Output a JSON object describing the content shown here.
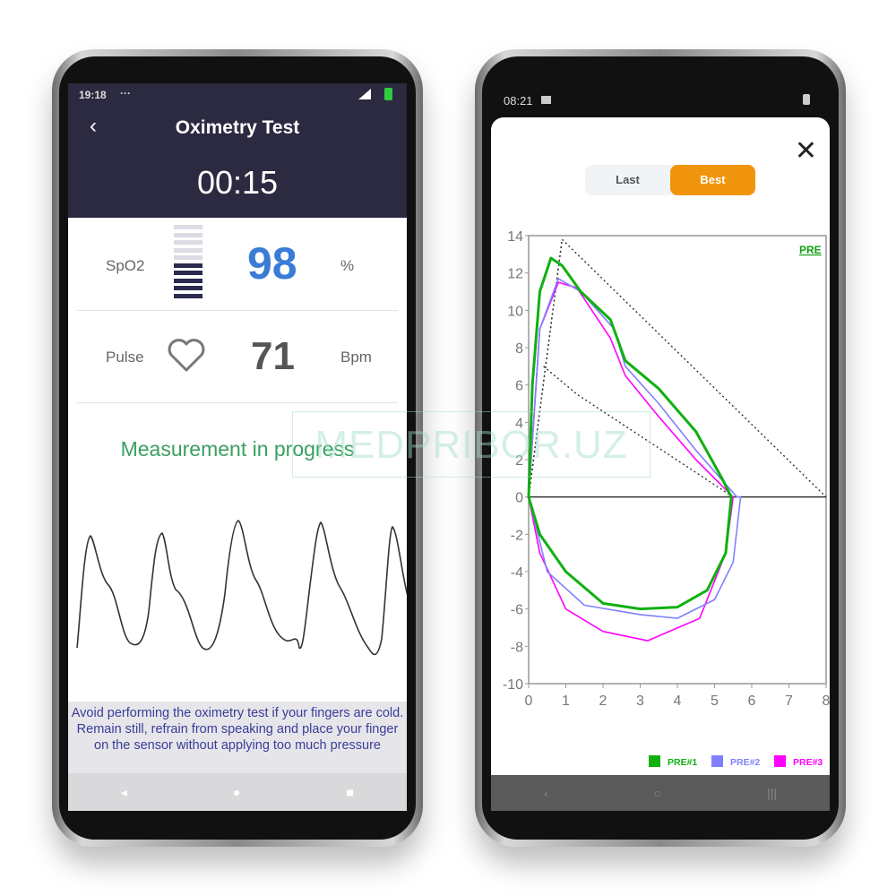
{
  "left_phone": {
    "status_time": "19:18",
    "status_dots": "···",
    "title": "Oximetry Test",
    "timer": "00:15",
    "spo2": {
      "label": "SpO2",
      "value": "98",
      "unit": "%",
      "level_bars_filled": 5,
      "level_bars_total": 10
    },
    "pulse": {
      "label": "Pulse",
      "value": "71",
      "unit": "Bpm",
      "icon": "heart-icon"
    },
    "status_message": "Measurement in progress",
    "instructions": [
      "Avoid performing the oximetry test if your fingers are cold.",
      "Remain still, refrain from speaking and place your finger on the sensor without applying too much pressure"
    ],
    "nav": [
      "◂",
      "●",
      "■"
    ],
    "colors": {
      "header": "#2b2a40",
      "spo2_value": "#3a7bd5",
      "message": "#3aa060",
      "instructions": "#3b3b9a"
    }
  },
  "right_phone": {
    "status_time": "08:21",
    "tabs": [
      {
        "label": "Last",
        "active": false
      },
      {
        "label": "Best",
        "active": true
      }
    ],
    "accent": "#f0940e",
    "nav": [
      "‹",
      "○",
      "|||"
    ]
  },
  "watermark": "MEDPRIBOR.UZ",
  "chart_data": {
    "type": "line",
    "title": "PRE",
    "xlim": [
      0,
      8
    ],
    "ylim": [
      -10,
      14
    ],
    "xticks": [
      0,
      1,
      2,
      3,
      4,
      5,
      6,
      7,
      8
    ],
    "yticks": [
      14,
      12,
      10,
      8,
      6,
      4,
      2,
      0,
      -2,
      -4,
      -6,
      -8,
      -10
    ],
    "legend_position": "bottom-right",
    "series": [
      {
        "name": "PRE#1",
        "color": "#10b010",
        "points": [
          [
            0,
            0
          ],
          [
            0.1,
            6
          ],
          [
            0.3,
            11
          ],
          [
            0.6,
            12.8
          ],
          [
            0.9,
            12.4
          ],
          [
            1.4,
            11
          ],
          [
            2.2,
            9.5
          ],
          [
            2.6,
            7.3
          ],
          [
            3.5,
            5.8
          ],
          [
            4.5,
            3.5
          ],
          [
            5.2,
            1
          ],
          [
            5.45,
            0
          ],
          [
            5.3,
            -3
          ],
          [
            4.8,
            -5
          ],
          [
            4,
            -5.9
          ],
          [
            3,
            -6
          ],
          [
            2,
            -5.7
          ],
          [
            1,
            -4
          ],
          [
            0.3,
            -2
          ],
          [
            0,
            0
          ]
        ]
      },
      {
        "name": "PRE#2",
        "color": "#8080ff",
        "points": [
          [
            0,
            0
          ],
          [
            0.3,
            9
          ],
          [
            0.8,
            11.7
          ],
          [
            1.4,
            11
          ],
          [
            2.3,
            9
          ],
          [
            2.6,
            7
          ],
          [
            3.5,
            5
          ],
          [
            4.5,
            2.5
          ],
          [
            5.6,
            0
          ],
          [
            5.7,
            0
          ],
          [
            5.5,
            -3.5
          ],
          [
            5,
            -5.5
          ],
          [
            4,
            -6.5
          ],
          [
            3,
            -6.3
          ],
          [
            1.5,
            -5.8
          ],
          [
            0.5,
            -4
          ],
          [
            0,
            0
          ]
        ]
      },
      {
        "name": "PRE#3",
        "color": "#ff00ff",
        "points": [
          [
            0,
            0
          ],
          [
            0.3,
            9
          ],
          [
            0.8,
            11.5
          ],
          [
            1.3,
            11.2
          ],
          [
            2.2,
            8.5
          ],
          [
            2.6,
            6.5
          ],
          [
            3.5,
            4.3
          ],
          [
            4.5,
            2
          ],
          [
            5.5,
            0
          ],
          [
            5.3,
            -3
          ],
          [
            4.6,
            -6.5
          ],
          [
            3.2,
            -7.7
          ],
          [
            2,
            -7.2
          ],
          [
            1,
            -6
          ],
          [
            0.3,
            -3
          ],
          [
            0,
            0
          ]
        ]
      }
    ],
    "reference_lines": [
      [
        [
          0,
          0
        ],
        [
          0.9,
          13.8
        ],
        [
          8,
          0
        ]
      ],
      [
        [
          0,
          0
        ],
        [
          0.9,
          13.8
        ]
      ],
      [
        [
          0.4,
          7
        ],
        [
          1.3,
          5.5
        ],
        [
          5.5,
          0
        ]
      ]
    ]
  }
}
